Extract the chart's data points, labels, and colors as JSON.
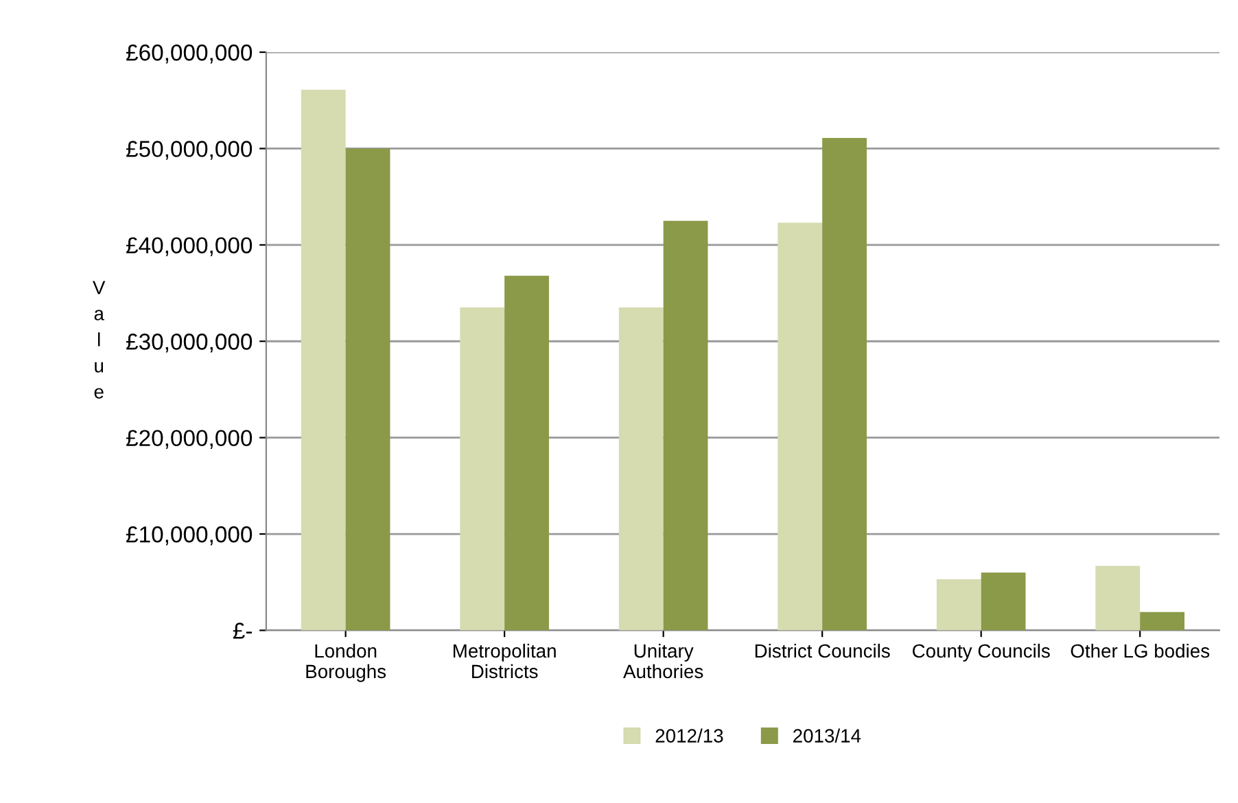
{
  "chart_data": {
    "type": "bar",
    "ylabel": "Value",
    "categories": [
      "London\nBoroughs",
      "Metropolitan\nDistricts",
      "Unitary\nAuthories",
      "District Councils",
      "County Councils",
      "Other LG bodies"
    ],
    "series": [
      {
        "name": "2012/13",
        "color": "#d6dbb0",
        "values": [
          56100000,
          33500000,
          33500000,
          42300000,
          5300000,
          6700000
        ]
      },
      {
        "name": "2013/14",
        "color": "#8a9a48",
        "values": [
          50000000,
          36800000,
          42500000,
          51100000,
          6000000,
          1900000
        ]
      }
    ],
    "ylim": [
      0,
      60000000
    ],
    "yticks": [
      {
        "value": 0,
        "label": "£-"
      },
      {
        "value": 10000000,
        "label": "£10,000,000"
      },
      {
        "value": 20000000,
        "label": "£20,000,000"
      },
      {
        "value": 30000000,
        "label": "£30,000,000"
      },
      {
        "value": 40000000,
        "label": "£40,000,000"
      },
      {
        "value": 50000000,
        "label": "£50,000,000"
      },
      {
        "value": 60000000,
        "label": "£60,000,000"
      }
    ],
    "grid": "y",
    "legend": "bottom"
  }
}
